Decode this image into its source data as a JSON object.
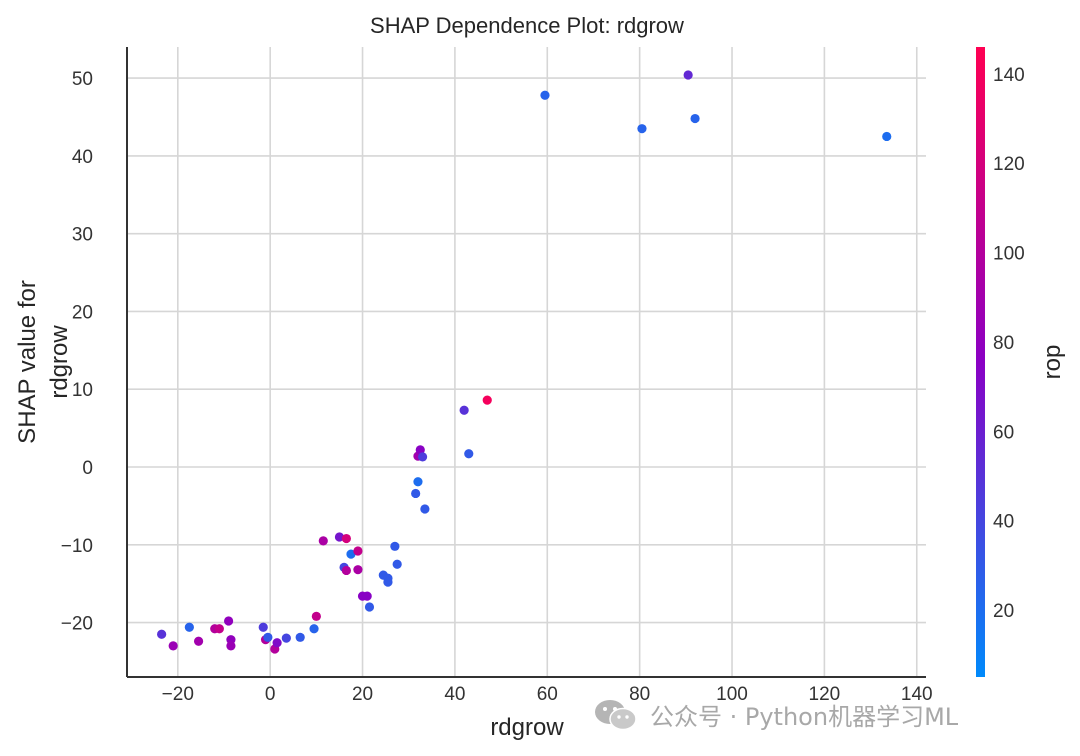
{
  "chart_data": {
    "type": "scatter",
    "title": "SHAP Dependence Plot: rdgrow",
    "xlabel": "rdgrow",
    "ylabel": [
      "SHAP value for",
      "rdgrow"
    ],
    "xlim": [
      -31,
      142
    ],
    "ylim": [
      -27,
      54
    ],
    "xticks": [
      -20,
      0,
      20,
      40,
      60,
      80,
      100,
      120,
      140
    ],
    "xtick_labels": [
      "−20",
      "0",
      "20",
      "40",
      "60",
      "80",
      "100",
      "120",
      "140"
    ],
    "yticks": [
      -20,
      -10,
      0,
      10,
      20,
      30,
      40,
      50
    ],
    "ytick_labels": [
      "−20",
      "−10",
      "0",
      "10",
      "20",
      "30",
      "40",
      "50"
    ],
    "grid": true,
    "colorbar": {
      "label": "rop",
      "range": [
        5,
        146
      ],
      "ticks": [
        20,
        40,
        60,
        80,
        100,
        120,
        140
      ],
      "colors": [
        "#008afb",
        "#8a00c4",
        "#ff0052"
      ]
    },
    "points": [
      {
        "x": -23.5,
        "y": -21.5,
        "c": 50
      },
      {
        "x": -21.0,
        "y": -23.0,
        "c": 85
      },
      {
        "x": -17.5,
        "y": -20.6,
        "c": 25
      },
      {
        "x": -15.5,
        "y": -22.4,
        "c": 90
      },
      {
        "x": -12.0,
        "y": -20.8,
        "c": 100
      },
      {
        "x": -11.0,
        "y": -20.8,
        "c": 110
      },
      {
        "x": -9.0,
        "y": -19.8,
        "c": 80
      },
      {
        "x": -8.5,
        "y": -22.2,
        "c": 80
      },
      {
        "x": -8.5,
        "y": -23.0,
        "c": 85
      },
      {
        "x": -1.5,
        "y": -20.6,
        "c": 45
      },
      {
        "x": -1.0,
        "y": -22.2,
        "c": 100
      },
      {
        "x": -0.5,
        "y": -21.9,
        "c": 30
      },
      {
        "x": 1.0,
        "y": -23.4,
        "c": 100
      },
      {
        "x": 1.5,
        "y": -22.6,
        "c": 70
      },
      {
        "x": 3.5,
        "y": -22.0,
        "c": 40
      },
      {
        "x": 6.5,
        "y": -21.9,
        "c": 30
      },
      {
        "x": 9.5,
        "y": -20.8,
        "c": 25
      },
      {
        "x": 10.0,
        "y": -19.2,
        "c": 110
      },
      {
        "x": 11.5,
        "y": -9.5,
        "c": 95
      },
      {
        "x": 15.0,
        "y": -9.0,
        "c": 65
      },
      {
        "x": 16.0,
        "y": -12.9,
        "c": 40
      },
      {
        "x": 16.5,
        "y": -13.3,
        "c": 100
      },
      {
        "x": 16.5,
        "y": -9.2,
        "c": 120
      },
      {
        "x": 17.5,
        "y": -11.2,
        "c": 20
      },
      {
        "x": 19.0,
        "y": -10.8,
        "c": 110
      },
      {
        "x": 19.0,
        "y": -13.2,
        "c": 95
      },
      {
        "x": 20.0,
        "y": -16.6,
        "c": 75
      },
      {
        "x": 21.0,
        "y": -16.6,
        "c": 75
      },
      {
        "x": 21.5,
        "y": -18.0,
        "c": 30
      },
      {
        "x": 24.5,
        "y": -13.9,
        "c": 30
      },
      {
        "x": 25.5,
        "y": -14.3,
        "c": 30
      },
      {
        "x": 25.5,
        "y": -14.8,
        "c": 30
      },
      {
        "x": 27.0,
        "y": -10.2,
        "c": 30
      },
      {
        "x": 27.5,
        "y": -12.5,
        "c": 30
      },
      {
        "x": 31.5,
        "y": -3.4,
        "c": 30
      },
      {
        "x": 32.0,
        "y": -1.9,
        "c": 20
      },
      {
        "x": 32.0,
        "y": 1.4,
        "c": 90
      },
      {
        "x": 32.5,
        "y": 2.2,
        "c": 75
      },
      {
        "x": 33.0,
        "y": 1.3,
        "c": 45
      },
      {
        "x": 33.5,
        "y": -5.4,
        "c": 30
      },
      {
        "x": 42.0,
        "y": 7.3,
        "c": 50
      },
      {
        "x": 43.0,
        "y": 1.7,
        "c": 30
      },
      {
        "x": 47.0,
        "y": 8.6,
        "c": 140
      },
      {
        "x": 59.5,
        "y": 47.8,
        "c": 25
      },
      {
        "x": 80.5,
        "y": 43.5,
        "c": 25
      },
      {
        "x": 90.5,
        "y": 50.4,
        "c": 55
      },
      {
        "x": 92.0,
        "y": 44.8,
        "c": 25
      },
      {
        "x": 133.5,
        "y": 42.5,
        "c": 20
      }
    ]
  },
  "watermark": {
    "icon": "wechat-icon",
    "text": "公众号 · Python机器学习ML"
  }
}
